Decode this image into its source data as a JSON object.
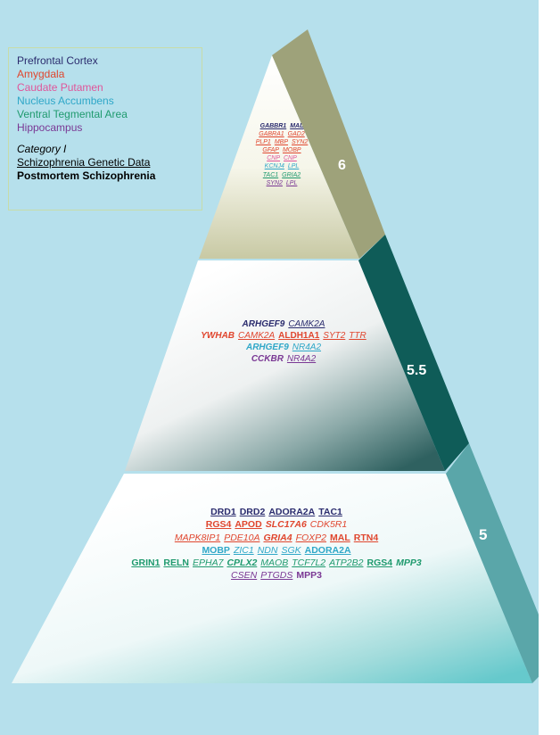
{
  "legend": {
    "regions": [
      {
        "name": "Prefrontal Cortex",
        "color": "#2b2c6e"
      },
      {
        "name": "Amygdala",
        "color": "#e0462e"
      },
      {
        "name": "Caudate Putamen",
        "color": "#e0559a"
      },
      {
        "name": "Nucleus Accumbens",
        "color": "#2fa7c8"
      },
      {
        "name": "Ventral Tegmental Area",
        "color": "#1f9a6e"
      },
      {
        "name": "Hippocampus",
        "color": "#7a3894"
      }
    ],
    "category": "Category I",
    "genetic": "Schizophrenia Genetic Data",
    "postmortem": "Postmortem Schizophrenia"
  },
  "tiers": [
    {
      "level": "6",
      "lines": [
        [
          {
            "t": "GABBR1",
            "c": "pfc",
            "s": "bi"
          },
          {
            "t": "MAL",
            "c": "pfc",
            "s": "bi"
          }
        ],
        [
          {
            "t": "GABRA1",
            "c": "amy",
            "s": "i"
          },
          {
            "t": "GAD2",
            "c": "amy",
            "s": "i"
          }
        ],
        [
          {
            "t": "PLP1",
            "c": "amy",
            "s": "i"
          },
          {
            "t": "MBP",
            "c": "amy",
            "s": "i"
          },
          {
            "t": "SYN2",
            "c": "amy",
            "s": "i"
          }
        ],
        [
          {
            "t": "GFAP",
            "c": "amy",
            "s": "i"
          },
          {
            "t": "MOBP",
            "c": "amy",
            "s": "i"
          }
        ],
        [
          {
            "t": "CNP",
            "c": "cau",
            "s": "i"
          },
          {
            "t": "CNP",
            "c": "cau",
            "s": "i"
          }
        ],
        [
          {
            "t": "KCNJ4",
            "c": "nac",
            "s": "i"
          },
          {
            "t": "LPL",
            "c": "nac",
            "s": "i"
          }
        ],
        [
          {
            "t": "TAC1",
            "c": "vta",
            "s": "i"
          },
          {
            "t": "GRIA2",
            "c": "vta",
            "s": "i"
          }
        ],
        [
          {
            "t": "SYN2",
            "c": "hip",
            "s": "i"
          },
          {
            "t": "LPL",
            "c": "hip",
            "s": "i"
          }
        ]
      ]
    },
    {
      "level": "5.5",
      "lines": [
        [
          {
            "t": "ARHGEF9",
            "c": "pfc",
            "s": "nbi"
          },
          {
            "t": "CAMK2A",
            "c": "pfc",
            "s": "i"
          }
        ],
        [
          {
            "t": "YWHAB",
            "c": "amy",
            "s": "nbi"
          },
          {
            "t": "CAMK2A",
            "c": "amy",
            "s": "i"
          },
          {
            "t": "ALDH1A1",
            "c": "amy",
            "s": "b"
          },
          {
            "t": "SYT2",
            "c": "amy",
            "s": "i"
          },
          {
            "t": "TTR",
            "c": "amy",
            "s": "i"
          }
        ],
        [
          {
            "t": "ARHGEF9",
            "c": "nac",
            "s": "nbi"
          },
          {
            "t": "NR4A2",
            "c": "nac",
            "s": "i"
          }
        ],
        [
          {
            "t": "CCKBR",
            "c": "hip",
            "s": "nbi"
          },
          {
            "t": "NR4A2",
            "c": "hip",
            "s": "i"
          }
        ]
      ]
    },
    {
      "level": "5",
      "lines": [
        [
          {
            "t": "DRD1",
            "c": "pfc",
            "s": "b"
          },
          {
            "t": "DRD2",
            "c": "pfc",
            "s": "b"
          },
          {
            "t": "ADORA2A",
            "c": "pfc",
            "s": "b"
          },
          {
            "t": "TAC1",
            "c": "pfc",
            "s": "b"
          }
        ],
        [
          {
            "t": "RGS4",
            "c": "amy",
            "s": "b"
          },
          {
            "t": "APOD",
            "c": "amy",
            "s": "b"
          },
          {
            "t": "SLC17A6",
            "c": "amy",
            "s": "nbi"
          },
          {
            "t": "CDK5R1",
            "c": "amy",
            "s": "ni"
          }
        ],
        [
          {
            "t": "MAPK8IP1",
            "c": "amy",
            "s": "i"
          },
          {
            "t": "PDE10A",
            "c": "amy",
            "s": "i"
          },
          {
            "t": "GRIA4",
            "c": "amy",
            "s": "bi"
          },
          {
            "t": "FOXP2",
            "c": "amy",
            "s": "i"
          },
          {
            "t": "MAL",
            "c": "amy",
            "s": "b"
          },
          {
            "t": "RTN4",
            "c": "amy",
            "s": "b"
          }
        ],
        [
          {
            "t": "MOBP",
            "c": "nac",
            "s": "b"
          },
          {
            "t": "ZIC1",
            "c": "nac",
            "s": "i"
          },
          {
            "t": "NDN",
            "c": "nac",
            "s": "i"
          },
          {
            "t": "SGK",
            "c": "nac",
            "s": "i"
          },
          {
            "t": "ADORA2A",
            "c": "nac",
            "s": "b"
          }
        ],
        [
          {
            "t": "GRIN1",
            "c": "vta",
            "s": "b"
          },
          {
            "t": "RELN",
            "c": "vta",
            "s": "b"
          },
          {
            "t": "EPHA7",
            "c": "vta",
            "s": "i"
          },
          {
            "t": "CPLX2",
            "c": "vta",
            "s": "bi"
          },
          {
            "t": "MAOB",
            "c": "vta",
            "s": "i"
          },
          {
            "t": "TCF7L2",
            "c": "vta",
            "s": "i"
          },
          {
            "t": "ATP2B2",
            "c": "vta",
            "s": "i"
          },
          {
            "t": "RGS4",
            "c": "vta",
            "s": "b"
          },
          {
            "t": "MPP3",
            "c": "vta",
            "s": "nbi"
          }
        ],
        [
          {
            "t": "CSEN",
            "c": "hip",
            "s": "i"
          },
          {
            "t": "PTGDS",
            "c": "hip",
            "s": "i"
          },
          {
            "t": "MPP3",
            "c": "hip",
            "s": "nb"
          }
        ]
      ]
    }
  ]
}
